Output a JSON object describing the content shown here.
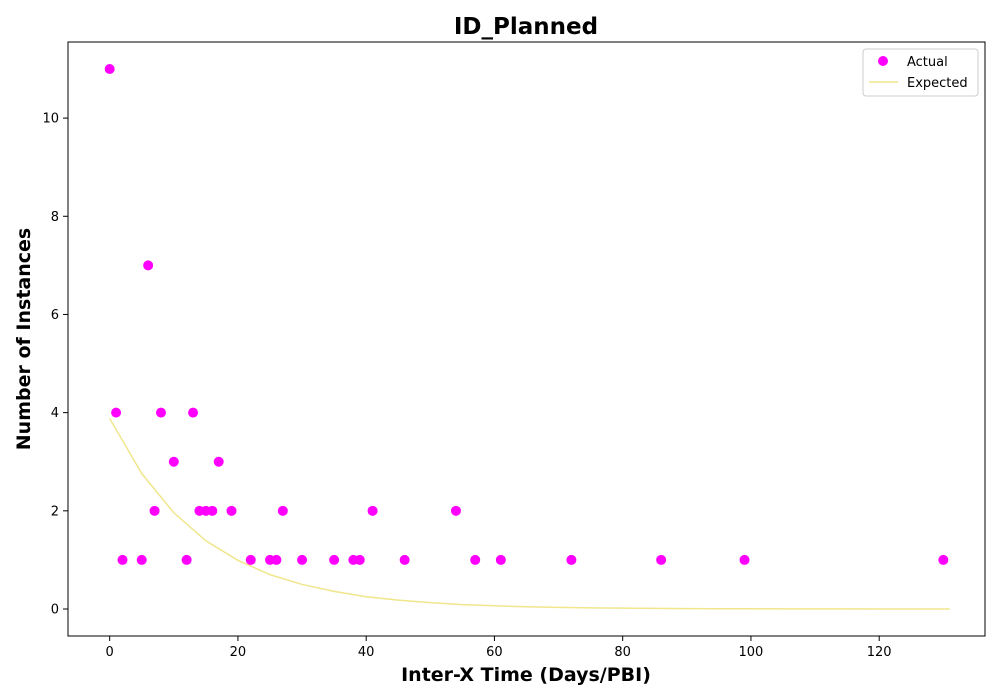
{
  "chart_data": {
    "type": "scatter",
    "title": "ID_Planned",
    "xlabel": "Inter-X Time (Days/PBI)",
    "ylabel": "Number of Instances",
    "xlim": [
      -6.5,
      136.5
    ],
    "ylim": [
      -0.55,
      11.55
    ],
    "xticks": [
      0,
      20,
      40,
      60,
      80,
      100,
      120
    ],
    "yticks": [
      0,
      2,
      4,
      6,
      8,
      10
    ],
    "grid": false,
    "legend_position": "top-right",
    "series": [
      {
        "name": "Actual",
        "kind": "scatter",
        "color": "#ff00ff",
        "points": [
          [
            0,
            11
          ],
          [
            1,
            4
          ],
          [
            2,
            1
          ],
          [
            5,
            1
          ],
          [
            6,
            7
          ],
          [
            7,
            2
          ],
          [
            8,
            4
          ],
          [
            10,
            3
          ],
          [
            12,
            1
          ],
          [
            13,
            4
          ],
          [
            14,
            2
          ],
          [
            15,
            2
          ],
          [
            16,
            2
          ],
          [
            17,
            3
          ],
          [
            19,
            2
          ],
          [
            22,
            1
          ],
          [
            25,
            1
          ],
          [
            26,
            1
          ],
          [
            27,
            2
          ],
          [
            30,
            1
          ],
          [
            35,
            1
          ],
          [
            38,
            1
          ],
          [
            39,
            1
          ],
          [
            41,
            2
          ],
          [
            46,
            1
          ],
          [
            54,
            2
          ],
          [
            57,
            1
          ],
          [
            61,
            1
          ],
          [
            72,
            1
          ],
          [
            86,
            1
          ],
          [
            99,
            1
          ],
          [
            130,
            1
          ]
        ]
      },
      {
        "name": "Expected",
        "kind": "line",
        "color": "#f0e68c",
        "points": [
          [
            0,
            3.88
          ],
          [
            5,
            2.76
          ],
          [
            10,
            1.96
          ],
          [
            15,
            1.39
          ],
          [
            20,
            0.99
          ],
          [
            25,
            0.7
          ],
          [
            30,
            0.5
          ],
          [
            35,
            0.36
          ],
          [
            40,
            0.25
          ],
          [
            45,
            0.18
          ],
          [
            50,
            0.13
          ],
          [
            55,
            0.09
          ],
          [
            60,
            0.065
          ],
          [
            65,
            0.046
          ],
          [
            70,
            0.033
          ],
          [
            75,
            0.023
          ],
          [
            80,
            0.017
          ],
          [
            85,
            0.012
          ],
          [
            90,
            0.0084
          ],
          [
            95,
            0.006
          ],
          [
            100,
            0.0042
          ],
          [
            105,
            0.003
          ],
          [
            110,
            0.0021
          ],
          [
            115,
            0.0015
          ],
          [
            120,
            0.0011
          ],
          [
            125,
            0.0008
          ],
          [
            131,
            0.0005
          ]
        ]
      }
    ]
  }
}
